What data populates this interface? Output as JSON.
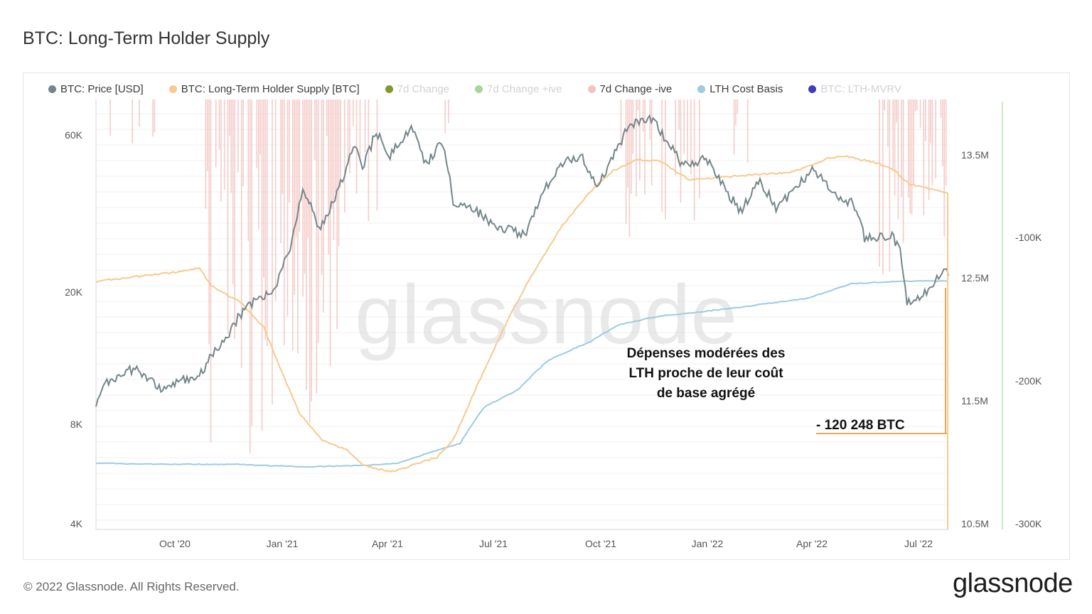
{
  "title": "BTC: Long-Term Holder Supply",
  "footer": "© 2022 Glassnode. All Rights Reserved.",
  "brand": "glassnode",
  "watermark": "glassnode",
  "legend": [
    {
      "label": "BTC: Price [USD]",
      "color": "#74868a",
      "dim": false
    },
    {
      "label": "BTC: Long-Term Holder Supply [BTC]",
      "color": "#f8c98d",
      "dim": false
    },
    {
      "label": "7d Change",
      "color": "#7c9a2e",
      "dim": true
    },
    {
      "label": "7d Change +ive",
      "color": "#a5d69a",
      "dim": true
    },
    {
      "label": "7d Change -ive",
      "color": "#f2c3c0",
      "dim": false
    },
    {
      "label": "LTH Cost Basis",
      "color": "#9ccbe4",
      "dim": false
    },
    {
      "label": "BTC: LTH-MVRV",
      "color": "#3b3bc4",
      "dim": true
    }
  ],
  "annotation": {
    "lines": [
      "Dépenses modérées des",
      "LTH proche de leur coût",
      "de base agrégé"
    ],
    "value": "- 120 248 BTC"
  },
  "chart_data": {
    "type": "line",
    "x_ticks": [
      "Oct '20",
      "Jan '21",
      "Apr '21",
      "Jul '21",
      "Oct '21",
      "Jan '22",
      "Apr '22",
      "Jul '22"
    ],
    "y_left_ticks": [
      "60K",
      "20K",
      "8K",
      "4K"
    ],
    "y_left_scale": "log",
    "y_right_ticks": [
      "13.5M",
      "12.5M",
      "11.5M",
      "10.5M"
    ],
    "y_right2_ticks": [
      "-100K",
      "-200K",
      "-300K"
    ],
    "series": [
      {
        "name": "BTC: Price [USD]",
        "color": "#74868a",
        "points": [
          [
            "2020-07-12",
            9300
          ],
          [
            "2020-07-20",
            10500
          ],
          [
            "2020-08-01",
            11300
          ],
          [
            "2020-08-15",
            11800
          ],
          [
            "2020-09-05",
            10200
          ],
          [
            "2020-09-20",
            10700
          ],
          [
            "2020-10-10",
            11300
          ],
          [
            "2020-10-22",
            13000
          ],
          [
            "2020-11-05",
            15200
          ],
          [
            "2020-11-20",
            18200
          ],
          [
            "2020-12-01",
            19000
          ],
          [
            "2020-12-15",
            20500
          ],
          [
            "2020-12-20",
            23500
          ],
          [
            "2020-12-28",
            27000
          ],
          [
            "2021-01-08",
            40000
          ],
          [
            "2021-01-15",
            36500
          ],
          [
            "2021-01-22",
            31000
          ],
          [
            "2021-02-05",
            38000
          ],
          [
            "2021-02-15",
            47500
          ],
          [
            "2021-02-21",
            57000
          ],
          [
            "2021-03-01",
            47000
          ],
          [
            "2021-03-13",
            61000
          ],
          [
            "2021-03-25",
            52000
          ],
          [
            "2021-04-14",
            63500
          ],
          [
            "2021-04-25",
            49000
          ],
          [
            "2021-05-10",
            57000
          ],
          [
            "2021-05-19",
            37000
          ],
          [
            "2021-06-01",
            37000
          ],
          [
            "2021-06-22",
            32000
          ],
          [
            "2021-07-20",
            29800
          ],
          [
            "2021-08-05",
            40000
          ],
          [
            "2021-08-22",
            49000
          ],
          [
            "2021-09-07",
            52000
          ],
          [
            "2021-09-21",
            42000
          ],
          [
            "2021-10-05",
            51000
          ],
          [
            "2021-10-20",
            65000
          ],
          [
            "2021-11-09",
            67500
          ],
          [
            "2021-11-20",
            58000
          ],
          [
            "2021-12-04",
            49000
          ],
          [
            "2021-12-25",
            50500
          ],
          [
            "2022-01-10",
            41500
          ],
          [
            "2022-01-24",
            35000
          ],
          [
            "2022-02-10",
            44000
          ],
          [
            "2022-02-24",
            35500
          ],
          [
            "2022-03-29",
            47500
          ],
          [
            "2022-04-15",
            40000
          ],
          [
            "2022-05-05",
            36500
          ],
          [
            "2022-05-12",
            29000
          ],
          [
            "2022-06-05",
            30000
          ],
          [
            "2022-06-12",
            26500
          ],
          [
            "2022-06-18",
            18500
          ],
          [
            "2022-07-05",
            20000
          ],
          [
            "2022-07-20",
            23500
          ],
          [
            "2022-07-24",
            22500
          ]
        ]
      },
      {
        "name": "BTC: Long-Term Holder Supply [BTC]",
        "color": "#f8c98d",
        "points": [
          [
            "2020-07-12",
            12470000
          ],
          [
            "2020-08-15",
            12510000
          ],
          [
            "2020-09-15",
            12540000
          ],
          [
            "2020-10-10",
            12580000
          ],
          [
            "2020-10-20",
            12440000
          ],
          [
            "2020-11-15",
            12300000
          ],
          [
            "2020-12-05",
            12100000
          ],
          [
            "2020-12-20",
            11750000
          ],
          [
            "2021-01-05",
            11400000
          ],
          [
            "2021-01-25",
            11180000
          ],
          [
            "2021-02-15",
            11100000
          ],
          [
            "2021-03-01",
            10980000
          ],
          [
            "2021-03-25",
            10920000
          ],
          [
            "2021-04-15",
            10980000
          ],
          [
            "2021-05-05",
            11040000
          ],
          [
            "2021-05-20",
            11200000
          ],
          [
            "2021-06-10",
            11650000
          ],
          [
            "2021-07-05",
            12150000
          ],
          [
            "2021-07-25",
            12500000
          ],
          [
            "2021-08-20",
            12900000
          ],
          [
            "2021-09-15",
            13200000
          ],
          [
            "2021-10-05",
            13370000
          ],
          [
            "2021-10-25",
            13460000
          ],
          [
            "2021-11-15",
            13450000
          ],
          [
            "2021-12-10",
            13300000
          ],
          [
            "2022-01-10",
            13320000
          ],
          [
            "2022-02-05",
            13340000
          ],
          [
            "2022-03-10",
            13360000
          ],
          [
            "2022-04-10",
            13470000
          ],
          [
            "2022-04-25",
            13490000
          ],
          [
            "2022-05-25",
            13430000
          ],
          [
            "2022-06-08",
            13370000
          ],
          [
            "2022-06-20",
            13260000
          ],
          [
            "2022-07-20",
            13200000
          ],
          [
            "2022-07-24",
            13180000
          ]
        ]
      },
      {
        "name": "LTH Cost Basis",
        "color": "#9ccbe4",
        "points": [
          [
            "2020-07-12",
            6100
          ],
          [
            "2020-09-15",
            6050
          ],
          [
            "2020-11-15",
            6050
          ],
          [
            "2020-12-20",
            5980
          ],
          [
            "2021-01-10",
            5950
          ],
          [
            "2021-03-01",
            6000
          ],
          [
            "2021-04-01",
            6100
          ],
          [
            "2021-05-01",
            6600
          ],
          [
            "2021-05-25",
            7000
          ],
          [
            "2021-06-15",
            9000
          ],
          [
            "2021-07-15",
            10200
          ],
          [
            "2021-08-10",
            12500
          ],
          [
            "2021-09-15",
            14200
          ],
          [
            "2021-10-10",
            16000
          ],
          [
            "2021-11-15",
            17000
          ],
          [
            "2021-12-20",
            17500
          ],
          [
            "2022-01-20",
            18000
          ],
          [
            "2022-02-25",
            18700
          ],
          [
            "2022-03-25",
            19300
          ],
          [
            "2022-05-01",
            21300
          ],
          [
            "2022-06-15",
            21700
          ],
          [
            "2022-07-24",
            21700
          ]
        ]
      },
      {
        "name": "7d Change -ive",
        "color": "#f2c3c0",
        "type": "bar",
        "note": "negative spikes, clustered around Oct '20 – Mar '21, Sep '21 – Dec '21 and May – Jul '22"
      }
    ]
  }
}
